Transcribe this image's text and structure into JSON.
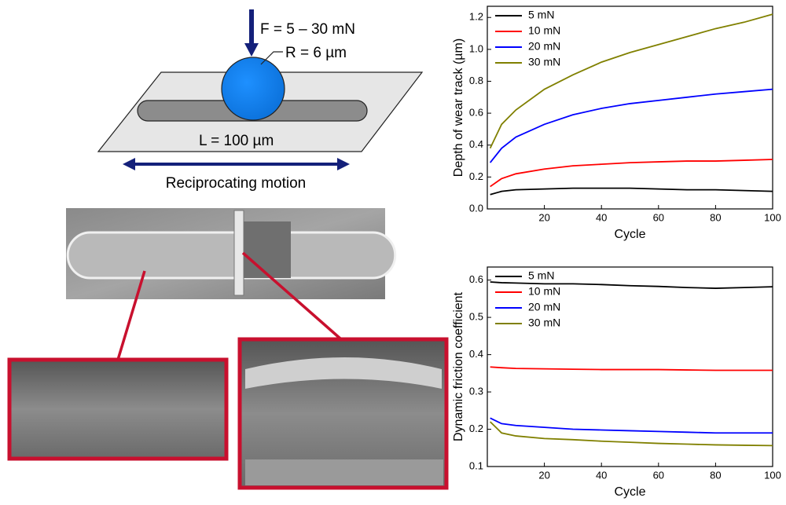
{
  "diagram": {
    "force_label": "F = 5 – 30 mN",
    "radius_label": "R = 6 µm",
    "length_label": "L = 100 µm",
    "motion_label": "Reciprocating motion"
  },
  "chart_data": [
    {
      "type": "line",
      "xlabel": "Cycle",
      "ylabel": "Depth of wear track (µm)",
      "x": [
        1,
        5,
        10,
        20,
        30,
        40,
        50,
        60,
        70,
        80,
        90,
        100
      ],
      "series": [
        {
          "name": "5 mN",
          "color": "#000000",
          "values": [
            0.09,
            0.11,
            0.12,
            0.125,
            0.13,
            0.13,
            0.13,
            0.125,
            0.12,
            0.12,
            0.115,
            0.11
          ]
        },
        {
          "name": "10 mN",
          "color": "#ff0000",
          "values": [
            0.14,
            0.19,
            0.22,
            0.25,
            0.27,
            0.28,
            0.29,
            0.295,
            0.3,
            0.3,
            0.305,
            0.31
          ]
        },
        {
          "name": "20 mN",
          "color": "#0000ff",
          "values": [
            0.29,
            0.38,
            0.45,
            0.53,
            0.59,
            0.63,
            0.66,
            0.68,
            0.7,
            0.72,
            0.735,
            0.75
          ]
        },
        {
          "name": "30 mN",
          "color": "#808000",
          "values": [
            0.38,
            0.53,
            0.62,
            0.75,
            0.84,
            0.92,
            0.98,
            1.03,
            1.08,
            1.13,
            1.17,
            1.22
          ]
        }
      ],
      "xlim": [
        0,
        100
      ],
      "xticks": [
        20,
        40,
        60,
        80,
        100
      ],
      "ylim": [
        0,
        1.27
      ],
      "yticks": [
        {
          "value": 0,
          "label": "0.0"
        },
        0.2,
        0.4,
        0.6,
        0.8,
        {
          "value": 1,
          "label": "1.0"
        },
        1.2
      ],
      "legend": "upper-left"
    },
    {
      "type": "line",
      "xlabel": "Cycle",
      "ylabel": "Dynamic friction coefficient",
      "x": [
        1,
        5,
        10,
        20,
        30,
        40,
        50,
        60,
        70,
        80,
        90,
        100
      ],
      "series": [
        {
          "name": "5 mN",
          "color": "#000000",
          "values": [
            0.595,
            0.593,
            0.592,
            0.59,
            0.59,
            0.588,
            0.585,
            0.583,
            0.58,
            0.578,
            0.58,
            0.582
          ]
        },
        {
          "name": "10 mN",
          "color": "#ff0000",
          "values": [
            0.367,
            0.365,
            0.363,
            0.362,
            0.361,
            0.36,
            0.36,
            0.36,
            0.359,
            0.358,
            0.358,
            0.358
          ]
        },
        {
          "name": "20 mN",
          "color": "#0000ff",
          "values": [
            0.23,
            0.215,
            0.21,
            0.205,
            0.2,
            0.198,
            0.196,
            0.194,
            0.192,
            0.19,
            0.19,
            0.19
          ]
        },
        {
          "name": "30 mN",
          "color": "#808000",
          "values": [
            0.22,
            0.19,
            0.182,
            0.175,
            0.172,
            0.168,
            0.165,
            0.162,
            0.16,
            0.158,
            0.157,
            0.156
          ]
        }
      ],
      "xlim": [
        0,
        100
      ],
      "xticks": [
        20,
        40,
        60,
        80,
        100
      ],
      "ylim": [
        0.1,
        0.635
      ],
      "yticks": [
        0.1,
        0.2,
        0.3,
        0.4,
        0.5,
        0.6
      ],
      "legend": "upper-left"
    }
  ]
}
